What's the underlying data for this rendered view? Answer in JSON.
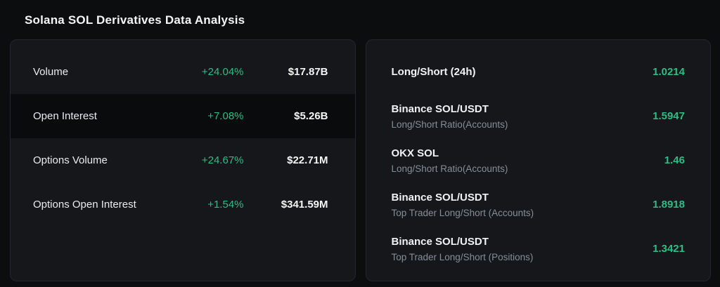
{
  "page": {
    "title": "Solana SOL Derivatives Data Analysis"
  },
  "colors": {
    "positive": "#2ebd85",
    "background": "#0b0d0f",
    "panel": "#15171a"
  },
  "left_panel": {
    "rows": [
      {
        "label": "Volume",
        "change": "+24.04%",
        "value": "$17.87B"
      },
      {
        "label": "Open Interest",
        "change": "+7.08%",
        "value": "$5.26B"
      },
      {
        "label": "Options Volume",
        "change": "+24.67%",
        "value": "$22.71M"
      },
      {
        "label": "Options Open Interest",
        "change": "+1.54%",
        "value": "$341.59M"
      }
    ]
  },
  "right_panel": {
    "rows": [
      {
        "title": "Long/Short (24h)",
        "subtitle": "",
        "value": "1.0214"
      },
      {
        "title": "Binance SOL/USDT",
        "subtitle": "Long/Short Ratio(Accounts)",
        "value": "1.5947"
      },
      {
        "title": "OKX SOL",
        "subtitle": "Long/Short Ratio(Accounts)",
        "value": "1.46"
      },
      {
        "title": "Binance SOL/USDT",
        "subtitle": "Top Trader Long/Short (Accounts)",
        "value": "1.8918"
      },
      {
        "title": "Binance SOL/USDT",
        "subtitle": "Top Trader Long/Short (Positions)",
        "value": "1.3421"
      }
    ]
  }
}
